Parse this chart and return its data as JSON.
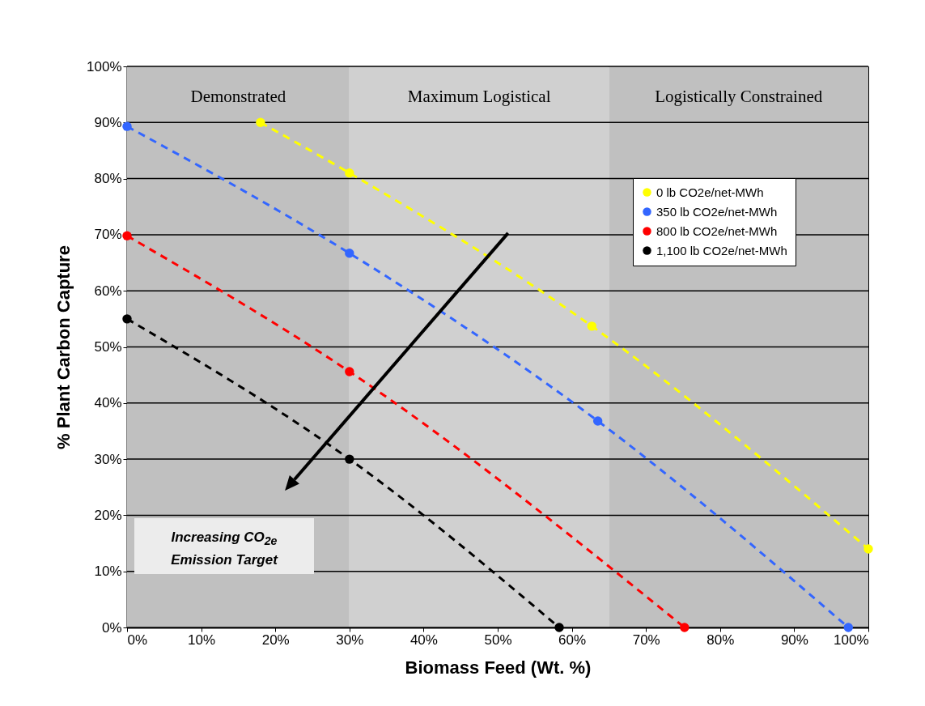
{
  "chart_data": {
    "type": "line",
    "xlabel": "Biomass Feed (Wt. %)",
    "ylabel": "% Plant Carbon Capture",
    "xlim": [
      0,
      100
    ],
    "xticks": [
      {
        "value": 0,
        "label": "0%"
      },
      {
        "value": 10,
        "label": "10%"
      },
      {
        "value": 20,
        "label": "20%"
      },
      {
        "value": 30,
        "label": "30%"
      },
      {
        "value": 40,
        "label": "40%"
      },
      {
        "value": 50,
        "label": "50%"
      },
      {
        "value": 60,
        "label": "60%"
      },
      {
        "value": 70,
        "label": "70%"
      },
      {
        "value": 80,
        "label": "80%"
      },
      {
        "value": 90,
        "label": "90%"
      },
      {
        "value": 100,
        "label": "100%"
      }
    ],
    "ylim": [
      0,
      100
    ],
    "yticks": [
      {
        "value": 0,
        "label": "0%"
      },
      {
        "value": 10,
        "label": "10%"
      },
      {
        "value": 20,
        "label": "20%"
      },
      {
        "value": 30,
        "label": "30%"
      },
      {
        "value": 40,
        "label": "40%"
      },
      {
        "value": 50,
        "label": "50%"
      },
      {
        "value": 60,
        "label": "60%"
      },
      {
        "value": 70,
        "label": "70%"
      },
      {
        "value": 80,
        "label": "80%"
      },
      {
        "value": 90,
        "label": "90%"
      },
      {
        "value": 100,
        "label": "100%"
      }
    ],
    "grid": "y",
    "legend": "top right",
    "marker": "circle",
    "line_style": "dashed",
    "series": [
      {
        "name": "0 lb CO2e/net-MWh",
        "color": "#ffff00",
        "x": [
          18,
          30,
          62.7,
          100
        ],
        "values": [
          90,
          81,
          53.7,
          14
        ]
      },
      {
        "name": "350 lb CO2e/net-MWh",
        "color": "#3366ff",
        "x": [
          0,
          30,
          63.5,
          97.3
        ],
        "values": [
          89.3,
          66.7,
          36.8,
          0
        ]
      },
      {
        "name": "800 lb CO2e/net-MWh",
        "color": "#ff0000",
        "x": [
          0,
          30,
          75.2
        ],
        "values": [
          69.8,
          45.6,
          0
        ]
      },
      {
        "name": "1,100 lb CO2e/net-MWh",
        "color": "#000000",
        "x": [
          0,
          30,
          58.3
        ],
        "values": [
          55,
          30,
          0
        ]
      }
    ],
    "bands": [
      {
        "axis": "x",
        "from": 0,
        "to": 30,
        "label": "Demonstrated",
        "color": "#c0c0c0"
      },
      {
        "axis": "x",
        "from": 30,
        "to": 65,
        "label": "Maximum Logistical",
        "color": "#d0d0d0"
      },
      {
        "axis": "x",
        "from": 65,
        "to": 100,
        "label": "Logistically Constrained",
        "color": "#c0c0c0"
      }
    ],
    "annotations": [
      "Increasing CO$_{2e}$ Emission Target"
    ]
  }
}
